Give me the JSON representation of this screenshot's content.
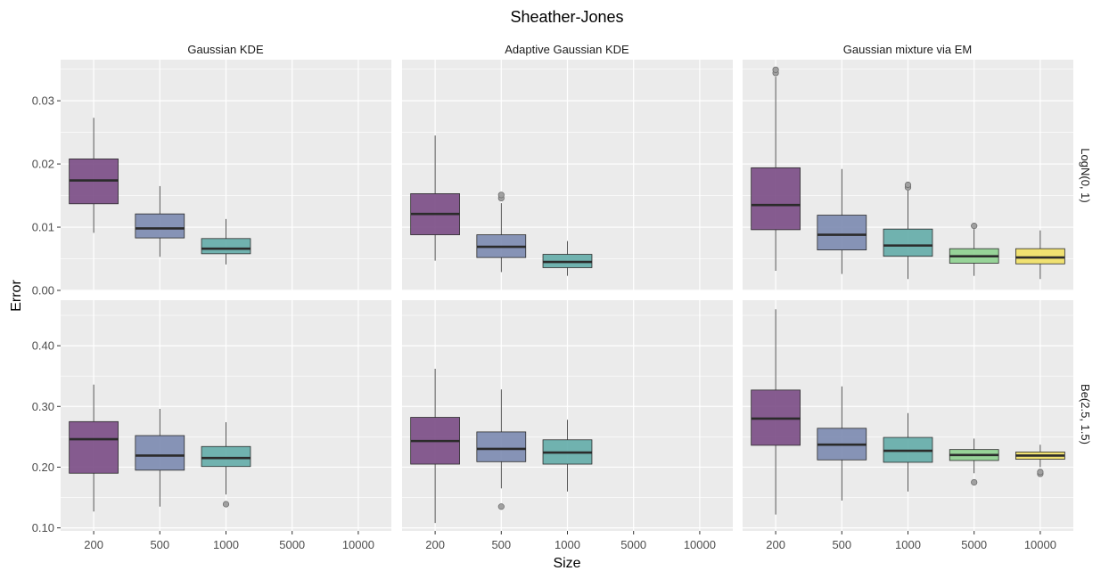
{
  "chart_data": {
    "type": "boxplot",
    "title": "Sheather-Jones",
    "xlabel": "Size",
    "ylabel": "Error",
    "categories": [
      "200",
      "500",
      "1000",
      "5000",
      "10000"
    ],
    "facet_columns": [
      "Gaussian KDE",
      "Adaptive Gaussian KDE",
      "Gaussian mixture via EM"
    ],
    "facet_rows": [
      {
        "label": "LogN(0, 1)",
        "ylim": [
          0,
          0.0365
        ],
        "yticks": [
          0.0,
          0.01,
          0.02,
          0.03
        ],
        "ytick_labels": [
          "0.00",
          "0.01",
          "0.02",
          "0.03"
        ]
      },
      {
        "label": "Be(2.5, 1.5)",
        "ylim": [
          0.095,
          0.475
        ],
        "yticks": [
          0.1,
          0.2,
          0.3,
          0.4
        ],
        "ytick_labels": [
          "0.10",
          "0.20",
          "0.30",
          "0.40"
        ]
      }
    ],
    "colors": {
      "200": "#7a4b85",
      "500": "#7b8ab0",
      "1000": "#63aca9",
      "5000": "#8ed08f",
      "10000": "#f1e064",
      "panel_bg": "#ebebeb",
      "grid": "#ffffff",
      "outline": "#2b2b2b"
    },
    "panels": [
      {
        "row": "LogN(0, 1)",
        "column": "Gaussian KDE",
        "boxes": [
          {
            "size": "200",
            "whisker_low": 0.0091,
            "q1": 0.0137,
            "median": 0.0174,
            "q3": 0.0208,
            "whisker_high": 0.0273,
            "outliers": []
          },
          {
            "size": "500",
            "whisker_low": 0.0053,
            "q1": 0.0083,
            "median": 0.0098,
            "q3": 0.0121,
            "whisker_high": 0.0165,
            "outliers": []
          },
          {
            "size": "1000",
            "whisker_low": 0.0041,
            "q1": 0.0058,
            "median": 0.0066,
            "q3": 0.0082,
            "whisker_high": 0.0113,
            "outliers": []
          }
        ]
      },
      {
        "row": "LogN(0, 1)",
        "column": "Adaptive Gaussian KDE",
        "boxes": [
          {
            "size": "200",
            "whisker_low": 0.0047,
            "q1": 0.0088,
            "median": 0.0121,
            "q3": 0.0153,
            "whisker_high": 0.0245,
            "outliers": []
          },
          {
            "size": "500",
            "whisker_low": 0.0029,
            "q1": 0.0052,
            "median": 0.0069,
            "q3": 0.0088,
            "whisker_high": 0.0138,
            "outliers": [
              0.0146,
              0.0151
            ]
          },
          {
            "size": "1000",
            "whisker_low": 0.0023,
            "q1": 0.0036,
            "median": 0.0045,
            "q3": 0.0057,
            "whisker_high": 0.0078,
            "outliers": []
          }
        ]
      },
      {
        "row": "LogN(0, 1)",
        "column": "Gaussian mixture via EM",
        "boxes": [
          {
            "size": "200",
            "whisker_low": 0.0031,
            "q1": 0.0096,
            "median": 0.0135,
            "q3": 0.0194,
            "whisker_high": 0.0338,
            "outliers": [
              0.0344,
              0.0349
            ]
          },
          {
            "size": "500",
            "whisker_low": 0.0026,
            "q1": 0.0064,
            "median": 0.0088,
            "q3": 0.0119,
            "whisker_high": 0.0192,
            "outliers": []
          },
          {
            "size": "1000",
            "whisker_low": 0.0018,
            "q1": 0.0054,
            "median": 0.0071,
            "q3": 0.0097,
            "whisker_high": 0.0158,
            "outliers": [
              0.0163,
              0.0167
            ]
          },
          {
            "size": "5000",
            "whisker_low": 0.0023,
            "q1": 0.0043,
            "median": 0.0054,
            "q3": 0.0066,
            "whisker_high": 0.0097,
            "outliers": [
              0.0102
            ]
          },
          {
            "size": "10000",
            "whisker_low": 0.0018,
            "q1": 0.0042,
            "median": 0.0052,
            "q3": 0.0066,
            "whisker_high": 0.0095,
            "outliers": []
          }
        ]
      },
      {
        "row": "Be(2.5, 1.5)",
        "column": "Gaussian KDE",
        "boxes": [
          {
            "size": "200",
            "whisker_low": 0.127,
            "q1": 0.19,
            "median": 0.246,
            "q3": 0.275,
            "whisker_high": 0.336,
            "outliers": []
          },
          {
            "size": "500",
            "whisker_low": 0.135,
            "q1": 0.195,
            "median": 0.219,
            "q3": 0.252,
            "whisker_high": 0.296,
            "outliers": []
          },
          {
            "size": "1000",
            "whisker_low": 0.155,
            "q1": 0.201,
            "median": 0.215,
            "q3": 0.234,
            "whisker_high": 0.274,
            "outliers": [
              0.139
            ]
          }
        ]
      },
      {
        "row": "Be(2.5, 1.5)",
        "column": "Adaptive Gaussian KDE",
        "boxes": [
          {
            "size": "200",
            "whisker_low": 0.108,
            "q1": 0.205,
            "median": 0.243,
            "q3": 0.282,
            "whisker_high": 0.362,
            "outliers": []
          },
          {
            "size": "500",
            "whisker_low": 0.165,
            "q1": 0.209,
            "median": 0.23,
            "q3": 0.258,
            "whisker_high": 0.328,
            "outliers": [
              0.135
            ]
          },
          {
            "size": "1000",
            "whisker_low": 0.16,
            "q1": 0.205,
            "median": 0.224,
            "q3": 0.245,
            "whisker_high": 0.278,
            "outliers": []
          }
        ]
      },
      {
        "row": "Be(2.5, 1.5)",
        "column": "Gaussian mixture via EM",
        "boxes": [
          {
            "size": "200",
            "whisker_low": 0.122,
            "q1": 0.236,
            "median": 0.28,
            "q3": 0.327,
            "whisker_high": 0.46,
            "outliers": []
          },
          {
            "size": "500",
            "whisker_low": 0.145,
            "q1": 0.212,
            "median": 0.237,
            "q3": 0.264,
            "whisker_high": 0.333,
            "outliers": []
          },
          {
            "size": "1000",
            "whisker_low": 0.16,
            "q1": 0.208,
            "median": 0.227,
            "q3": 0.249,
            "whisker_high": 0.289,
            "outliers": []
          },
          {
            "size": "5000",
            "whisker_low": 0.19,
            "q1": 0.211,
            "median": 0.22,
            "q3": 0.229,
            "whisker_high": 0.247,
            "outliers": [
              0.175
            ]
          },
          {
            "size": "10000",
            "whisker_low": 0.2,
            "q1": 0.213,
            "median": 0.219,
            "q3": 0.225,
            "whisker_high": 0.237,
            "outliers": [
              0.189,
              0.192
            ]
          }
        ]
      }
    ]
  }
}
